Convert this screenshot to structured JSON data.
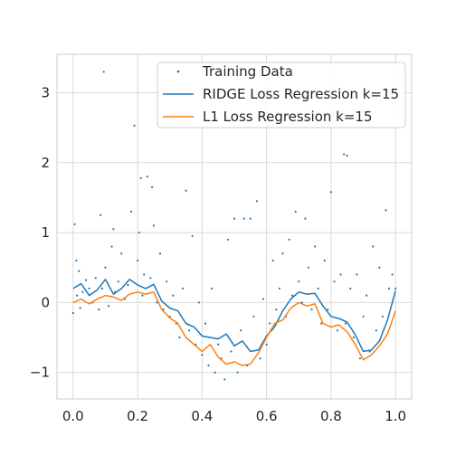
{
  "chart_data": {
    "type": "scatter",
    "title": "",
    "xlabel": "",
    "ylabel": "",
    "xlim": [
      -0.05,
      1.05
    ],
    "ylim": [
      -1.38,
      3.55
    ],
    "grid": true,
    "legend_placement": "top-right",
    "x_ticks": [
      0.0,
      0.2,
      0.4,
      0.6,
      0.8,
      1.0
    ],
    "x_tick_labels": [
      "0.0",
      "0.2",
      "0.4",
      "0.6",
      "0.8",
      "1.0"
    ],
    "y_ticks": [
      -1,
      0,
      1,
      2,
      3
    ],
    "y_tick_labels": [
      "−1",
      "0",
      "1",
      "2",
      "3"
    ],
    "colors": {
      "scatter": "#1f77b4",
      "ridge": "#1f77b4",
      "l1": "#ff7f0e",
      "grid": "#d9d9d9",
      "axes_edge": "#cccccc"
    },
    "legend": {
      "scatter_label": "Training Data",
      "ridge_label": "RIDGE Loss Regression k=15",
      "l1_label": "L1 Loss Regression k=15"
    },
    "series": [
      {
        "name": "RIDGE Loss Regression k=15",
        "kind": "line",
        "x": [
          0.0,
          0.025,
          0.05,
          0.075,
          0.1,
          0.125,
          0.15,
          0.175,
          0.2,
          0.225,
          0.25,
          0.275,
          0.3,
          0.325,
          0.35,
          0.375,
          0.4,
          0.425,
          0.45,
          0.475,
          0.5,
          0.525,
          0.55,
          0.575,
          0.6,
          0.625,
          0.65,
          0.675,
          0.7,
          0.725,
          0.75,
          0.775,
          0.8,
          0.825,
          0.85,
          0.875,
          0.9,
          0.925,
          0.95,
          0.975,
          1.0
        ],
        "y": [
          0.2,
          0.27,
          0.1,
          0.18,
          0.33,
          0.12,
          0.2,
          0.33,
          0.25,
          0.2,
          0.26,
          0.02,
          -0.08,
          -0.12,
          -0.3,
          -0.35,
          -0.48,
          -0.5,
          -0.52,
          -0.45,
          -0.62,
          -0.55,
          -0.7,
          -0.68,
          -0.48,
          -0.35,
          -0.12,
          0.05,
          0.15,
          0.12,
          0.13,
          -0.05,
          -0.2,
          -0.23,
          -0.28,
          -0.46,
          -0.7,
          -0.68,
          -0.55,
          -0.25,
          0.17
        ]
      },
      {
        "name": "L1 Loss Regression k=15",
        "kind": "line",
        "x": [
          0.0,
          0.025,
          0.05,
          0.075,
          0.1,
          0.125,
          0.15,
          0.175,
          0.2,
          0.225,
          0.25,
          0.275,
          0.3,
          0.325,
          0.35,
          0.375,
          0.4,
          0.425,
          0.45,
          0.475,
          0.5,
          0.525,
          0.55,
          0.575,
          0.6,
          0.625,
          0.65,
          0.675,
          0.7,
          0.725,
          0.75,
          0.775,
          0.8,
          0.825,
          0.85,
          0.875,
          0.9,
          0.925,
          0.95,
          0.975,
          1.0
        ],
        "y": [
          0.0,
          0.05,
          -0.02,
          0.05,
          0.1,
          0.08,
          0.03,
          0.12,
          0.15,
          0.12,
          0.15,
          -0.1,
          -0.22,
          -0.3,
          -0.5,
          -0.6,
          -0.7,
          -0.6,
          -0.78,
          -0.88,
          -0.85,
          -0.9,
          -0.88,
          -0.72,
          -0.5,
          -0.3,
          -0.25,
          -0.08,
          0.0,
          -0.05,
          -0.02,
          -0.3,
          -0.35,
          -0.32,
          -0.42,
          -0.6,
          -0.82,
          -0.75,
          -0.62,
          -0.45,
          -0.12
        ]
      }
    ],
    "scatter": {
      "name": "Training Data",
      "points": [
        [
          0.0,
          -0.15
        ],
        [
          0.005,
          1.12
        ],
        [
          0.01,
          0.6
        ],
        [
          0.012,
          0.1
        ],
        [
          0.018,
          0.45
        ],
        [
          0.022,
          -0.08
        ],
        [
          0.03,
          0.15
        ],
        [
          0.04,
          0.32
        ],
        [
          0.05,
          0.2
        ],
        [
          0.06,
          0.0
        ],
        [
          0.07,
          0.35
        ],
        [
          0.08,
          -0.1
        ],
        [
          0.085,
          1.25
        ],
        [
          0.09,
          0.2
        ],
        [
          0.095,
          3.3
        ],
        [
          0.1,
          0.5
        ],
        [
          0.11,
          -0.05
        ],
        [
          0.12,
          0.8
        ],
        [
          0.125,
          1.05
        ],
        [
          0.13,
          0.15
        ],
        [
          0.14,
          0.3
        ],
        [
          0.15,
          0.7
        ],
        [
          0.16,
          0.05
        ],
        [
          0.17,
          0.25
        ],
        [
          0.18,
          1.3
        ],
        [
          0.19,
          2.53
        ],
        [
          0.2,
          0.6
        ],
        [
          0.205,
          1.0
        ],
        [
          0.21,
          1.78
        ],
        [
          0.215,
          0.1
        ],
        [
          0.22,
          0.4
        ],
        [
          0.23,
          1.8
        ],
        [
          0.24,
          0.35
        ],
        [
          0.245,
          1.65
        ],
        [
          0.25,
          1.1
        ],
        [
          0.26,
          0.0
        ],
        [
          0.27,
          0.7
        ],
        [
          0.28,
          -0.1
        ],
        [
          0.29,
          0.3
        ],
        [
          0.3,
          -0.2
        ],
        [
          0.31,
          0.1
        ],
        [
          0.32,
          -0.3
        ],
        [
          0.33,
          -0.5
        ],
        [
          0.34,
          0.2
        ],
        [
          0.35,
          1.6
        ],
        [
          0.36,
          -0.4
        ],
        [
          0.37,
          0.95
        ],
        [
          0.38,
          -0.6
        ],
        [
          0.39,
          0.0
        ],
        [
          0.4,
          -0.75
        ],
        [
          0.41,
          -0.3
        ],
        [
          0.42,
          -0.9
        ],
        [
          0.43,
          0.2
        ],
        [
          0.44,
          -1.0
        ],
        [
          0.45,
          -0.6
        ],
        [
          0.46,
          -0.8
        ],
        [
          0.47,
          -1.1
        ],
        [
          0.48,
          0.9
        ],
        [
          0.49,
          -0.7
        ],
        [
          0.5,
          1.2
        ],
        [
          0.51,
          -1.0
        ],
        [
          0.52,
          -0.4
        ],
        [
          0.53,
          1.2
        ],
        [
          0.54,
          -0.9
        ],
        [
          0.55,
          1.2
        ],
        [
          0.56,
          -0.2
        ],
        [
          0.57,
          1.45
        ],
        [
          0.58,
          -0.8
        ],
        [
          0.59,
          0.05
        ],
        [
          0.6,
          -0.6
        ],
        [
          0.61,
          -0.3
        ],
        [
          0.62,
          0.6
        ],
        [
          0.63,
          -0.1
        ],
        [
          0.64,
          0.2
        ],
        [
          0.65,
          0.7
        ],
        [
          0.66,
          -0.2
        ],
        [
          0.67,
          0.9
        ],
        [
          0.68,
          0.1
        ],
        [
          0.69,
          1.3
        ],
        [
          0.7,
          0.3
        ],
        [
          0.71,
          0.0
        ],
        [
          0.72,
          1.2
        ],
        [
          0.73,
          0.5
        ],
        [
          0.74,
          -0.1
        ],
        [
          0.75,
          0.8
        ],
        [
          0.76,
          0.2
        ],
        [
          0.77,
          -0.3
        ],
        [
          0.78,
          0.6
        ],
        [
          0.79,
          -0.1
        ],
        [
          0.8,
          1.58
        ],
        [
          0.81,
          0.3
        ],
        [
          0.82,
          -0.4
        ],
        [
          0.83,
          0.4
        ],
        [
          0.84,
          2.12
        ],
        [
          0.845,
          -0.3
        ],
        [
          0.85,
          2.1
        ],
        [
          0.86,
          0.2
        ],
        [
          0.87,
          -0.5
        ],
        [
          0.88,
          0.4
        ],
        [
          0.89,
          -0.8
        ],
        [
          0.9,
          -0.2
        ],
        [
          0.91,
          0.1
        ],
        [
          0.92,
          -0.7
        ],
        [
          0.93,
          0.8
        ],
        [
          0.94,
          -0.4
        ],
        [
          0.95,
          0.5
        ],
        [
          0.96,
          -0.2
        ],
        [
          0.97,
          1.32
        ],
        [
          0.98,
          0.2
        ],
        [
          0.99,
          0.4
        ],
        [
          1.0,
          0.2
        ]
      ]
    }
  }
}
